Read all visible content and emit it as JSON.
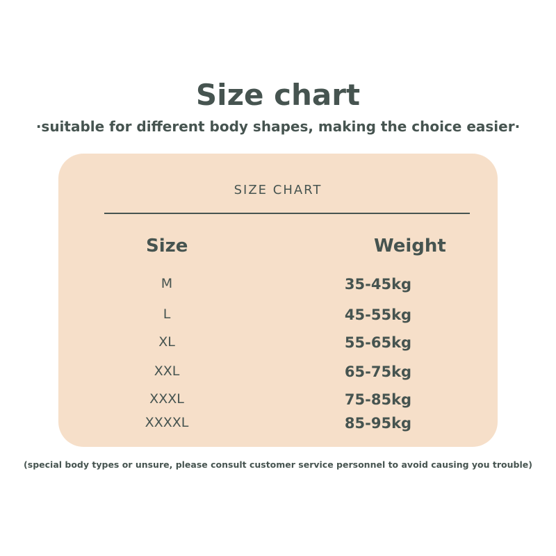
{
  "header": {
    "title": "Size chart",
    "subtitle": "·suitable for different body shapes, making the choice easier·"
  },
  "table": {
    "caption": "SIZE CHART",
    "columns": [
      "Size",
      "Weight"
    ],
    "rows": [
      [
        "M",
        "35-45kg"
      ],
      [
        "L",
        "45-55kg"
      ],
      [
        "XL",
        "55-65kg"
      ],
      [
        "XXL",
        "65-75kg"
      ],
      [
        "XXXL",
        "75-85kg"
      ],
      [
        "XXXXL",
        "85-95kg"
      ]
    ]
  },
  "footer": {
    "note": "(special body types or unsure, please consult customer service personnel to avoid causing you trouble)"
  }
}
